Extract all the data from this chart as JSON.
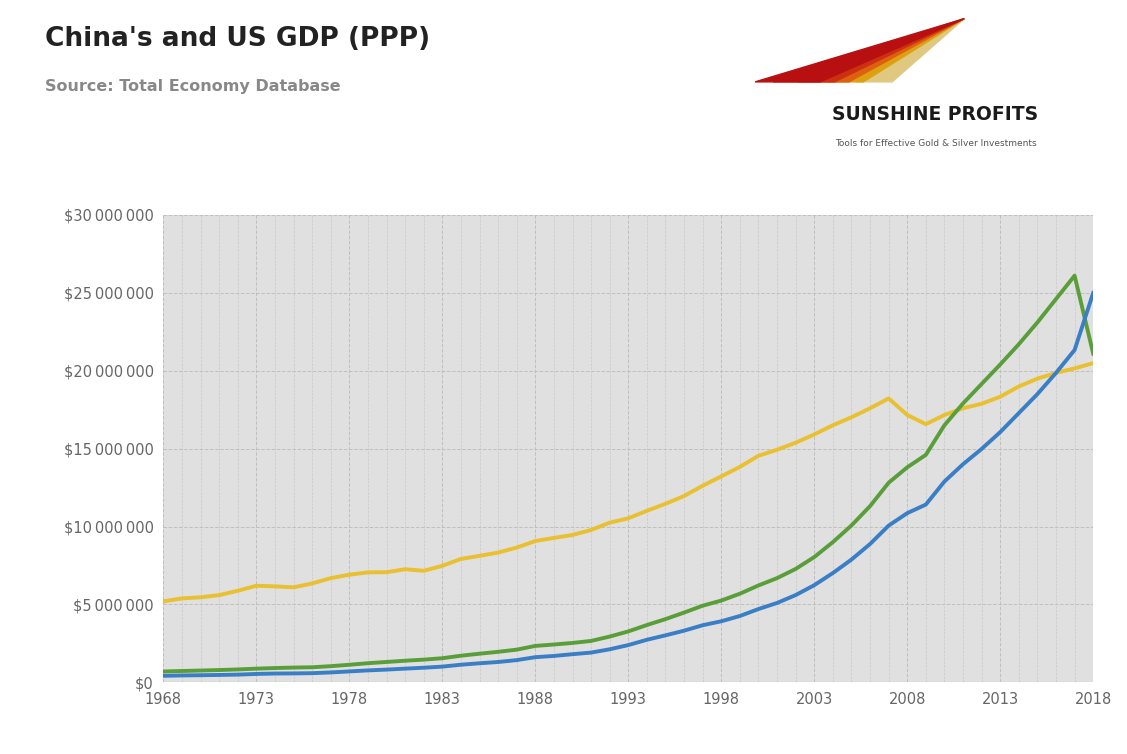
{
  "title": "China's and US GDP (PPP)",
  "source": "Source: Total Economy Database",
  "years": [
    1968,
    1969,
    1970,
    1971,
    1972,
    1973,
    1974,
    1975,
    1976,
    1977,
    1978,
    1979,
    1980,
    1981,
    1982,
    1983,
    1984,
    1985,
    1986,
    1987,
    1988,
    1989,
    1990,
    1991,
    1992,
    1993,
    1994,
    1995,
    1996,
    1997,
    1998,
    1999,
    2000,
    2001,
    2002,
    2003,
    2004,
    2005,
    2006,
    2007,
    2008,
    2009,
    2010,
    2011,
    2012,
    2013,
    2014,
    2015,
    2016,
    2017,
    2018
  ],
  "china_official": [
    421000,
    445000,
    459000,
    476000,
    498000,
    541000,
    567000,
    575000,
    590000,
    638000,
    703000,
    769000,
    820000,
    882000,
    941000,
    1011000,
    1133000,
    1226000,
    1308000,
    1429000,
    1617000,
    1696000,
    1808000,
    1912000,
    2124000,
    2393000,
    2734000,
    3018000,
    3318000,
    3667000,
    3921000,
    4260000,
    4706000,
    5096000,
    5603000,
    6237000,
    7016000,
    7880000,
    8879000,
    10060000,
    10860000,
    11410000,
    12890000,
    14000000,
    14980000,
    16060000,
    17280000,
    18500000,
    19860000,
    21330000,
    24990000
  ],
  "china_alternative": [
    700000,
    730000,
    760000,
    790000,
    830000,
    880000,
    920000,
    950000,
    970000,
    1040000,
    1130000,
    1230000,
    1310000,
    1390000,
    1460000,
    1550000,
    1710000,
    1840000,
    1960000,
    2100000,
    2340000,
    2430000,
    2530000,
    2660000,
    2940000,
    3270000,
    3680000,
    4060000,
    4480000,
    4920000,
    5250000,
    5690000,
    6220000,
    6690000,
    7280000,
    8040000,
    9000000,
    10070000,
    11310000,
    12810000,
    13800000,
    14600000,
    16500000,
    17900000,
    19150000,
    20400000,
    21700000,
    23100000,
    24600000,
    26100000,
    21100000
  ],
  "us_official": [
    5200000,
    5390000,
    5460000,
    5600000,
    5880000,
    6200000,
    6160000,
    6100000,
    6350000,
    6690000,
    6910000,
    7060000,
    7070000,
    7260000,
    7160000,
    7480000,
    7920000,
    8120000,
    8330000,
    8650000,
    9070000,
    9270000,
    9460000,
    9780000,
    10250000,
    10530000,
    11010000,
    11460000,
    11960000,
    12620000,
    13220000,
    13830000,
    14540000,
    14930000,
    15380000,
    15910000,
    16500000,
    17010000,
    17590000,
    18220000,
    17160000,
    16570000,
    17160000,
    17590000,
    17880000,
    18330000,
    18990000,
    19490000,
    19860000,
    20150000,
    20490000
  ],
  "china_official_color": "#3A7EC6",
  "china_alternative_color": "#5A9E3A",
  "us_official_color": "#E8C030",
  "background_color": "#E8E8E8",
  "outer_background": "#FFFFFF",
  "plot_bg": "#E0E0E0",
  "ylim": [
    0,
    30000000
  ],
  "yticks": [
    0,
    5000000,
    10000000,
    15000000,
    20000000,
    25000000,
    30000000
  ],
  "xticks": [
    1968,
    1973,
    1978,
    1983,
    1988,
    1993,
    1998,
    2003,
    2008,
    2013,
    2018
  ],
  "line_width": 2.8,
  "logo_colors": [
    "#C41010",
    "#D44010",
    "#E07010",
    "#D4A010",
    "#D4C060"
  ],
  "logo_text_main": "SUNSHINE PROFITS",
  "logo_text_sub": "Tools for Effective Gold & Silver Investments"
}
